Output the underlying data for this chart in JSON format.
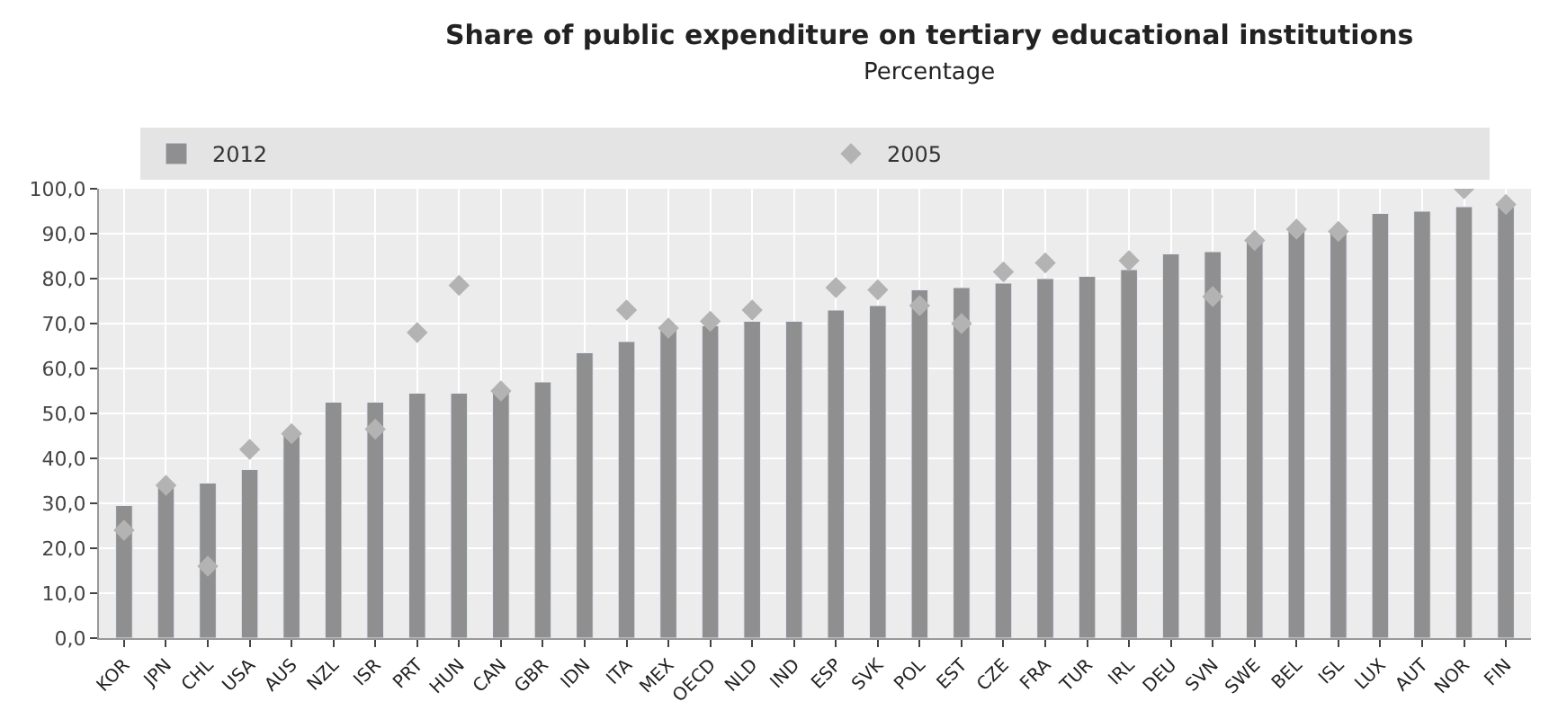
{
  "chart_data": {
    "type": "bar",
    "title": "Share of public expenditure on tertiary educational institutions",
    "subtitle": "Percentage",
    "categories": [
      "KOR",
      "JPN",
      "CHL",
      "USA",
      "AUS",
      "NZL",
      "ISR",
      "PRT",
      "HUN",
      "CAN",
      "GBR",
      "IDN",
      "ITA",
      "MEX",
      "OECD",
      "NLD",
      "IND",
      "ESP",
      "SVK",
      "POL",
      "EST",
      "CZE",
      "FRA",
      "TUR",
      "IRL",
      "DEU",
      "SVN",
      "SWE",
      "BEL",
      "ISL",
      "LUX",
      "AUT",
      "NOR",
      "FIN"
    ],
    "series": [
      {
        "name": "2012",
        "color": "#8f8f8f",
        "values": [
          29.5,
          34.5,
          34.5,
          37.5,
          45.5,
          52.5,
          52.5,
          54.5,
          54.5,
          55.5,
          57,
          63.5,
          66,
          69.5,
          69.5,
          70.5,
          70.5,
          73,
          74,
          77.5,
          78,
          79,
          80,
          80.5,
          82,
          85.5,
          86,
          89,
          90.5,
          91,
          94.5,
          95,
          96,
          96
        ]
      },
      {
        "name": "2005",
        "type": "scatter",
        "color": "#b3b3b3",
        "marker": "diamond",
        "values": [
          24,
          34,
          16,
          42,
          45.5,
          null,
          46.5,
          68,
          78.5,
          55,
          null,
          null,
          73,
          69,
          70.5,
          73,
          null,
          78,
          77.5,
          74,
          70,
          81.5,
          83.5,
          null,
          84,
          null,
          76,
          88.5,
          91,
          90.5,
          null,
          null,
          100,
          96.5
        ]
      }
    ],
    "ylim": [
      0,
      100
    ],
    "yticks": [
      {
        "value": 0,
        "label": "0,0"
      },
      {
        "value": 10,
        "label": "10,0"
      },
      {
        "value": 20,
        "label": "20,0"
      },
      {
        "value": 30,
        "label": "30,0"
      },
      {
        "value": 40,
        "label": "40,0"
      },
      {
        "value": 50,
        "label": "50,0"
      },
      {
        "value": 60,
        "label": "60,0"
      },
      {
        "value": 70,
        "label": "70,0"
      },
      {
        "value": 80,
        "label": "80,0"
      },
      {
        "value": 90,
        "label": "90,0"
      },
      {
        "value": 100,
        "label": "100,0"
      }
    ],
    "grid": true,
    "legend": "top"
  }
}
